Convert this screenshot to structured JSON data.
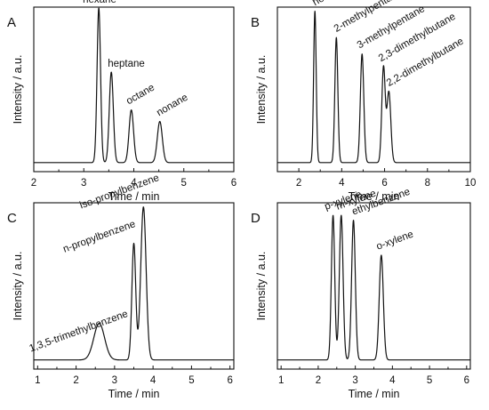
{
  "chart_data": [
    {
      "panel": "A",
      "type": "line",
      "xlabel": "Time / min",
      "ylabel": "Intensity / a.u.",
      "xlim": [
        2,
        6
      ],
      "xticks": [
        2,
        3,
        4,
        5,
        6
      ],
      "baseline_start": 3.3,
      "peaks": [
        {
          "name": "hexane",
          "x": 3.3,
          "height": 0.94,
          "width": 0.035
        },
        {
          "name": "heptane",
          "x": 3.55,
          "height": 0.55,
          "width": 0.04
        },
        {
          "name": "octane",
          "x": 3.95,
          "height": 0.32,
          "width": 0.045
        },
        {
          "name": "nonane",
          "x": 4.52,
          "height": 0.25,
          "width": 0.05
        }
      ]
    },
    {
      "panel": "B",
      "type": "line",
      "xlabel": "Time / min",
      "ylabel": "Intensity / a.u.",
      "xlim": [
        1,
        10
      ],
      "xticks": [
        2,
        4,
        6,
        8,
        10
      ],
      "baseline_start": 2.75,
      "peaks": [
        {
          "name": "hexane",
          "x": 2.75,
          "height": 0.92,
          "width": 0.06
        },
        {
          "name": "2-methylpentane",
          "x": 3.75,
          "height": 0.76,
          "width": 0.07
        },
        {
          "name": "3-methylpentane",
          "x": 4.95,
          "height": 0.66,
          "width": 0.08
        },
        {
          "name": "2,3-dimethylbutane",
          "x": 5.95,
          "height": 0.58,
          "width": 0.08
        },
        {
          "name": "2,2-dimethylbutane",
          "x": 6.2,
          "height": 0.43,
          "width": 0.09
        }
      ]
    },
    {
      "panel": "C",
      "type": "line",
      "xlabel": "Time / min",
      "ylabel": "Intensity / a.u.",
      "xlim": [
        0.9,
        6.1
      ],
      "xticks": [
        1,
        2,
        3,
        4,
        5,
        6
      ],
      "baseline_start": 3.47,
      "peaks": [
        {
          "name": "1,3,5-trimethylbenzene",
          "x": 2.6,
          "height": 0.22,
          "width": 0.14
        },
        {
          "name": "n-propylbenzene",
          "x": 3.5,
          "height": 0.7,
          "width": 0.05
        },
        {
          "name": "iso-propylbenzene",
          "x": 3.75,
          "height": 0.92,
          "width": 0.07
        }
      ]
    },
    {
      "panel": "D",
      "type": "line",
      "xlabel": "Time / min",
      "ylabel": "Intensity / a.u.",
      "xlim": [
        0.9,
        6.1
      ],
      "xticks": [
        1,
        2,
        3,
        4,
        5,
        6
      ],
      "baseline_start": 2.35,
      "peaks": [
        {
          "name": "p-xylene",
          "x": 2.4,
          "height": 0.87,
          "width": 0.045
        },
        {
          "name": "m-xylene",
          "x": 2.62,
          "height": 0.87,
          "width": 0.05
        },
        {
          "name": "ethylbenzene",
          "x": 2.95,
          "height": 0.84,
          "width": 0.05
        },
        {
          "name": "o-xylene",
          "x": 3.7,
          "height": 0.63,
          "width": 0.055
        }
      ]
    }
  ]
}
